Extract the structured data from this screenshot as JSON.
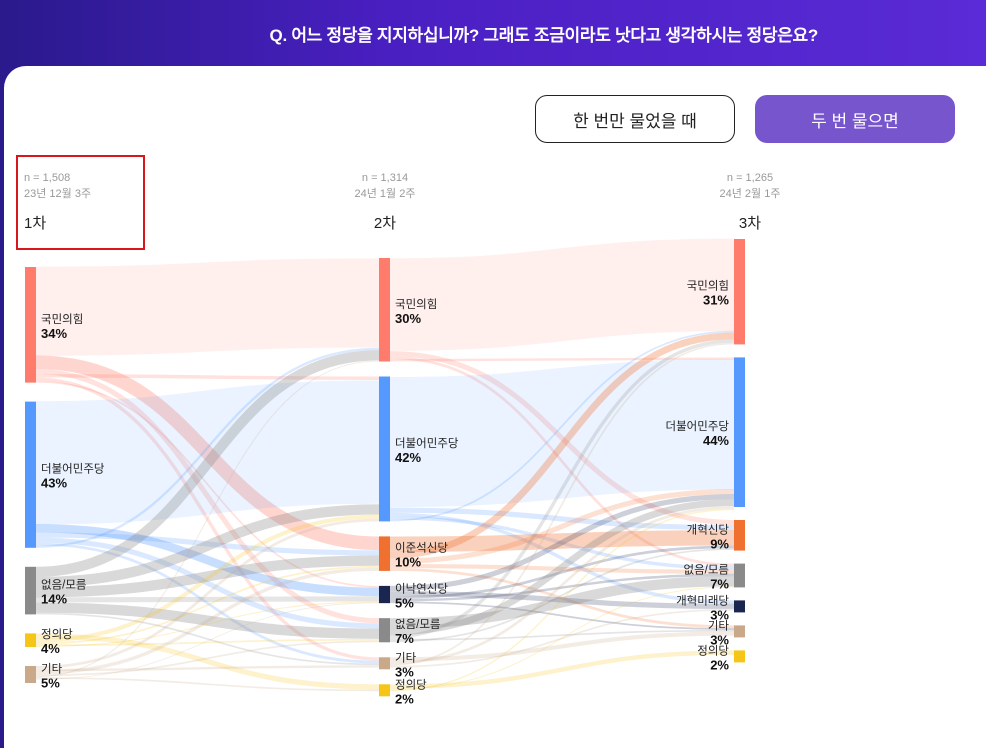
{
  "header": {
    "question": "Q. 어느 정당을 지지하십니까? 그래도 조금이라도 낫다고 생각하시는 정당은요?"
  },
  "toggle": {
    "once_label": "한 번만 물었을 때",
    "twice_label": "두 번 물으면"
  },
  "colors": {
    "ppp": "#ff7b6b",
    "dem": "#5599ff",
    "none": "#8a8a8a",
    "justice": "#f5c518",
    "other": "#c9a98a",
    "reform_lee": "#f07030",
    "reform_nak": "#1a2550",
    "reform_party": "#f07030",
    "reform_future": "#1a2550"
  },
  "chart_data": {
    "type": "sankey",
    "waves": [
      {
        "key": "w1",
        "n": "n = 1,508",
        "date": "23년 12월 3주",
        "label": "1차"
      },
      {
        "key": "w2",
        "n": "n = 1,314",
        "date": "24년 1월 2주",
        "label": "2차"
      },
      {
        "key": "w3",
        "n": "n = 1,265",
        "date": "24년 2월 1주",
        "label": "3차"
      }
    ],
    "nodes": {
      "w1": [
        {
          "id": "w1_ppp",
          "name": "국민의힘",
          "pct": "34%",
          "value": 34,
          "color": "ppp"
        },
        {
          "id": "w1_dem",
          "name": "더불어민주당",
          "pct": "43%",
          "value": 43,
          "color": "dem"
        },
        {
          "id": "w1_none",
          "name": "없음/모름",
          "pct": "14%",
          "value": 14,
          "color": "none"
        },
        {
          "id": "w1_justice",
          "name": "정의당",
          "pct": "4%",
          "value": 4,
          "color": "justice"
        },
        {
          "id": "w1_other",
          "name": "기타",
          "pct": "5%",
          "value": 5,
          "color": "other"
        }
      ],
      "w2": [
        {
          "id": "w2_ppp",
          "name": "국민의힘",
          "pct": "30%",
          "value": 30,
          "color": "ppp"
        },
        {
          "id": "w2_dem",
          "name": "더불어민주당",
          "pct": "42%",
          "value": 42,
          "color": "dem"
        },
        {
          "id": "w2_lee",
          "name": "이준석신당",
          "pct": "10%",
          "value": 10,
          "color": "reform_lee"
        },
        {
          "id": "w2_nak",
          "name": "이낙연신당",
          "pct": "5%",
          "value": 5,
          "color": "reform_nak"
        },
        {
          "id": "w2_none",
          "name": "없음/모름",
          "pct": "7%",
          "value": 7,
          "color": "none"
        },
        {
          "id": "w2_other",
          "name": "기타",
          "pct": "3%",
          "value": 3,
          "color": "other"
        },
        {
          "id": "w2_justice",
          "name": "정의당",
          "pct": "2%",
          "value": 2,
          "color": "justice"
        }
      ],
      "w3": [
        {
          "id": "w3_ppp",
          "name": "국민의힘",
          "pct": "31%",
          "value": 31,
          "color": "ppp"
        },
        {
          "id": "w3_dem",
          "name": "더불어민주당",
          "pct": "44%",
          "value": 44,
          "color": "dem"
        },
        {
          "id": "w3_reform",
          "name": "개혁신당",
          "pct": "9%",
          "value": 9,
          "color": "reform_party"
        },
        {
          "id": "w3_none",
          "name": "없음/모름",
          "pct": "7%",
          "value": 7,
          "color": "none"
        },
        {
          "id": "w3_future",
          "name": "개혁미래당",
          "pct": "3%",
          "value": 3,
          "color": "reform_future"
        },
        {
          "id": "w3_other",
          "name": "기타",
          "pct": "3%",
          "value": 3,
          "color": "other"
        },
        {
          "id": "w3_justice",
          "name": "정의당",
          "pct": "2%",
          "value": 2,
          "color": "justice"
        }
      ]
    },
    "links": [
      {
        "source": "w1_ppp",
        "target": "w2_ppp",
        "value": 26
      },
      {
        "source": "w1_ppp",
        "target": "w2_lee",
        "value": 4
      },
      {
        "source": "w1_ppp",
        "target": "w2_none",
        "value": 1.5
      },
      {
        "source": "w1_ppp",
        "target": "w2_dem",
        "value": 1
      },
      {
        "source": "w1_ppp",
        "target": "w2_other",
        "value": 1
      },
      {
        "source": "w1_ppp",
        "target": "w2_nak",
        "value": 0.5
      },
      {
        "source": "w1_dem",
        "target": "w2_dem",
        "value": 36
      },
      {
        "source": "w1_dem",
        "target": "w2_nak",
        "value": 2.5
      },
      {
        "source": "w1_dem",
        "target": "w2_lee",
        "value": 1.5
      },
      {
        "source": "w1_dem",
        "target": "w2_none",
        "value": 1.5
      },
      {
        "source": "w1_dem",
        "target": "w2_other",
        "value": 0.8
      },
      {
        "source": "w1_dem",
        "target": "w2_ppp",
        "value": 0.7
      },
      {
        "source": "w1_none",
        "target": "w2_ppp",
        "value": 3
      },
      {
        "source": "w1_none",
        "target": "w2_dem",
        "value": 3
      },
      {
        "source": "w1_none",
        "target": "w2_lee",
        "value": 3
      },
      {
        "source": "w1_none",
        "target": "w2_nak",
        "value": 1.5
      },
      {
        "source": "w1_none",
        "target": "w2_none",
        "value": 3
      },
      {
        "source": "w1_none",
        "target": "w2_other",
        "value": 0.5
      },
      {
        "source": "w1_justice",
        "target": "w2_justice",
        "value": 1.5
      },
      {
        "source": "w1_justice",
        "target": "w2_dem",
        "value": 1.2
      },
      {
        "source": "w1_justice",
        "target": "w2_lee",
        "value": 0.5
      },
      {
        "source": "w1_justice",
        "target": "w2_none",
        "value": 0.5
      },
      {
        "source": "w1_justice",
        "target": "w2_nak",
        "value": 0.3
      },
      {
        "source": "w1_other",
        "target": "w2_dem",
        "value": 0.8
      },
      {
        "source": "w1_other",
        "target": "w2_other",
        "value": 0.7
      },
      {
        "source": "w1_other",
        "target": "w2_lee",
        "value": 1
      },
      {
        "source": "w1_other",
        "target": "w2_none",
        "value": 0.5
      },
      {
        "source": "w1_other",
        "target": "w2_ppp",
        "value": 0.3
      },
      {
        "source": "w1_other",
        "target": "w2_justice",
        "value": 0.5
      },
      {
        "source": "w1_other",
        "target": "w2_nak",
        "value": 0.2
      },
      {
        "source": "w2_ppp",
        "target": "w3_ppp",
        "value": 27
      },
      {
        "source": "w2_ppp",
        "target": "w3_reform",
        "value": 1.5
      },
      {
        "source": "w2_ppp",
        "target": "w3_none",
        "value": 0.8
      },
      {
        "source": "w2_ppp",
        "target": "w3_dem",
        "value": 0.7
      },
      {
        "source": "w2_dem",
        "target": "w3_dem",
        "value": 38
      },
      {
        "source": "w2_dem",
        "target": "w3_reform",
        "value": 1.5
      },
      {
        "source": "w2_dem",
        "target": "w3_future",
        "value": 1
      },
      {
        "source": "w2_dem",
        "target": "w3_none",
        "value": 1
      },
      {
        "source": "w2_dem",
        "target": "w3_ppp",
        "value": 0.5
      },
      {
        "source": "w2_lee",
        "target": "w3_reform",
        "value": 4.5
      },
      {
        "source": "w2_lee",
        "target": "w3_ppp",
        "value": 2
      },
      {
        "source": "w2_lee",
        "target": "w3_dem",
        "value": 1.5
      },
      {
        "source": "w2_lee",
        "target": "w3_none",
        "value": 1.2
      },
      {
        "source": "w2_lee",
        "target": "w3_other",
        "value": 0.8
      },
      {
        "source": "w2_nak",
        "target": "w3_dem",
        "value": 1.5
      },
      {
        "source": "w2_nak",
        "target": "w3_future",
        "value": 1.5
      },
      {
        "source": "w2_nak",
        "target": "w3_reform",
        "value": 0.8
      },
      {
        "source": "w2_nak",
        "target": "w3_none",
        "value": 0.7
      },
      {
        "source": "w2_nak",
        "target": "w3_other",
        "value": 0.5
      },
      {
        "source": "w2_none",
        "target": "w3_none",
        "value": 3
      },
      {
        "source": "w2_none",
        "target": "w3_dem",
        "value": 2
      },
      {
        "source": "w2_none",
        "target": "w3_ppp",
        "value": 1
      },
      {
        "source": "w2_none",
        "target": "w3_other",
        "value": 0.5
      },
      {
        "source": "w2_none",
        "target": "w3_reform",
        "value": 0.5
      },
      {
        "source": "w2_other",
        "target": "w3_other",
        "value": 1.2
      },
      {
        "source": "w2_other",
        "target": "w3_dem",
        "value": 0.8
      },
      {
        "source": "w2_other",
        "target": "w3_ppp",
        "value": 0.5
      },
      {
        "source": "w2_other",
        "target": "w3_future",
        "value": 0.5
      },
      {
        "source": "w2_justice",
        "target": "w3_justice",
        "value": 1.3
      },
      {
        "source": "w2_justice",
        "target": "w3_none",
        "value": 0.3
      },
      {
        "source": "w2_justice",
        "target": "w3_dem",
        "value": 0.4
      }
    ]
  }
}
